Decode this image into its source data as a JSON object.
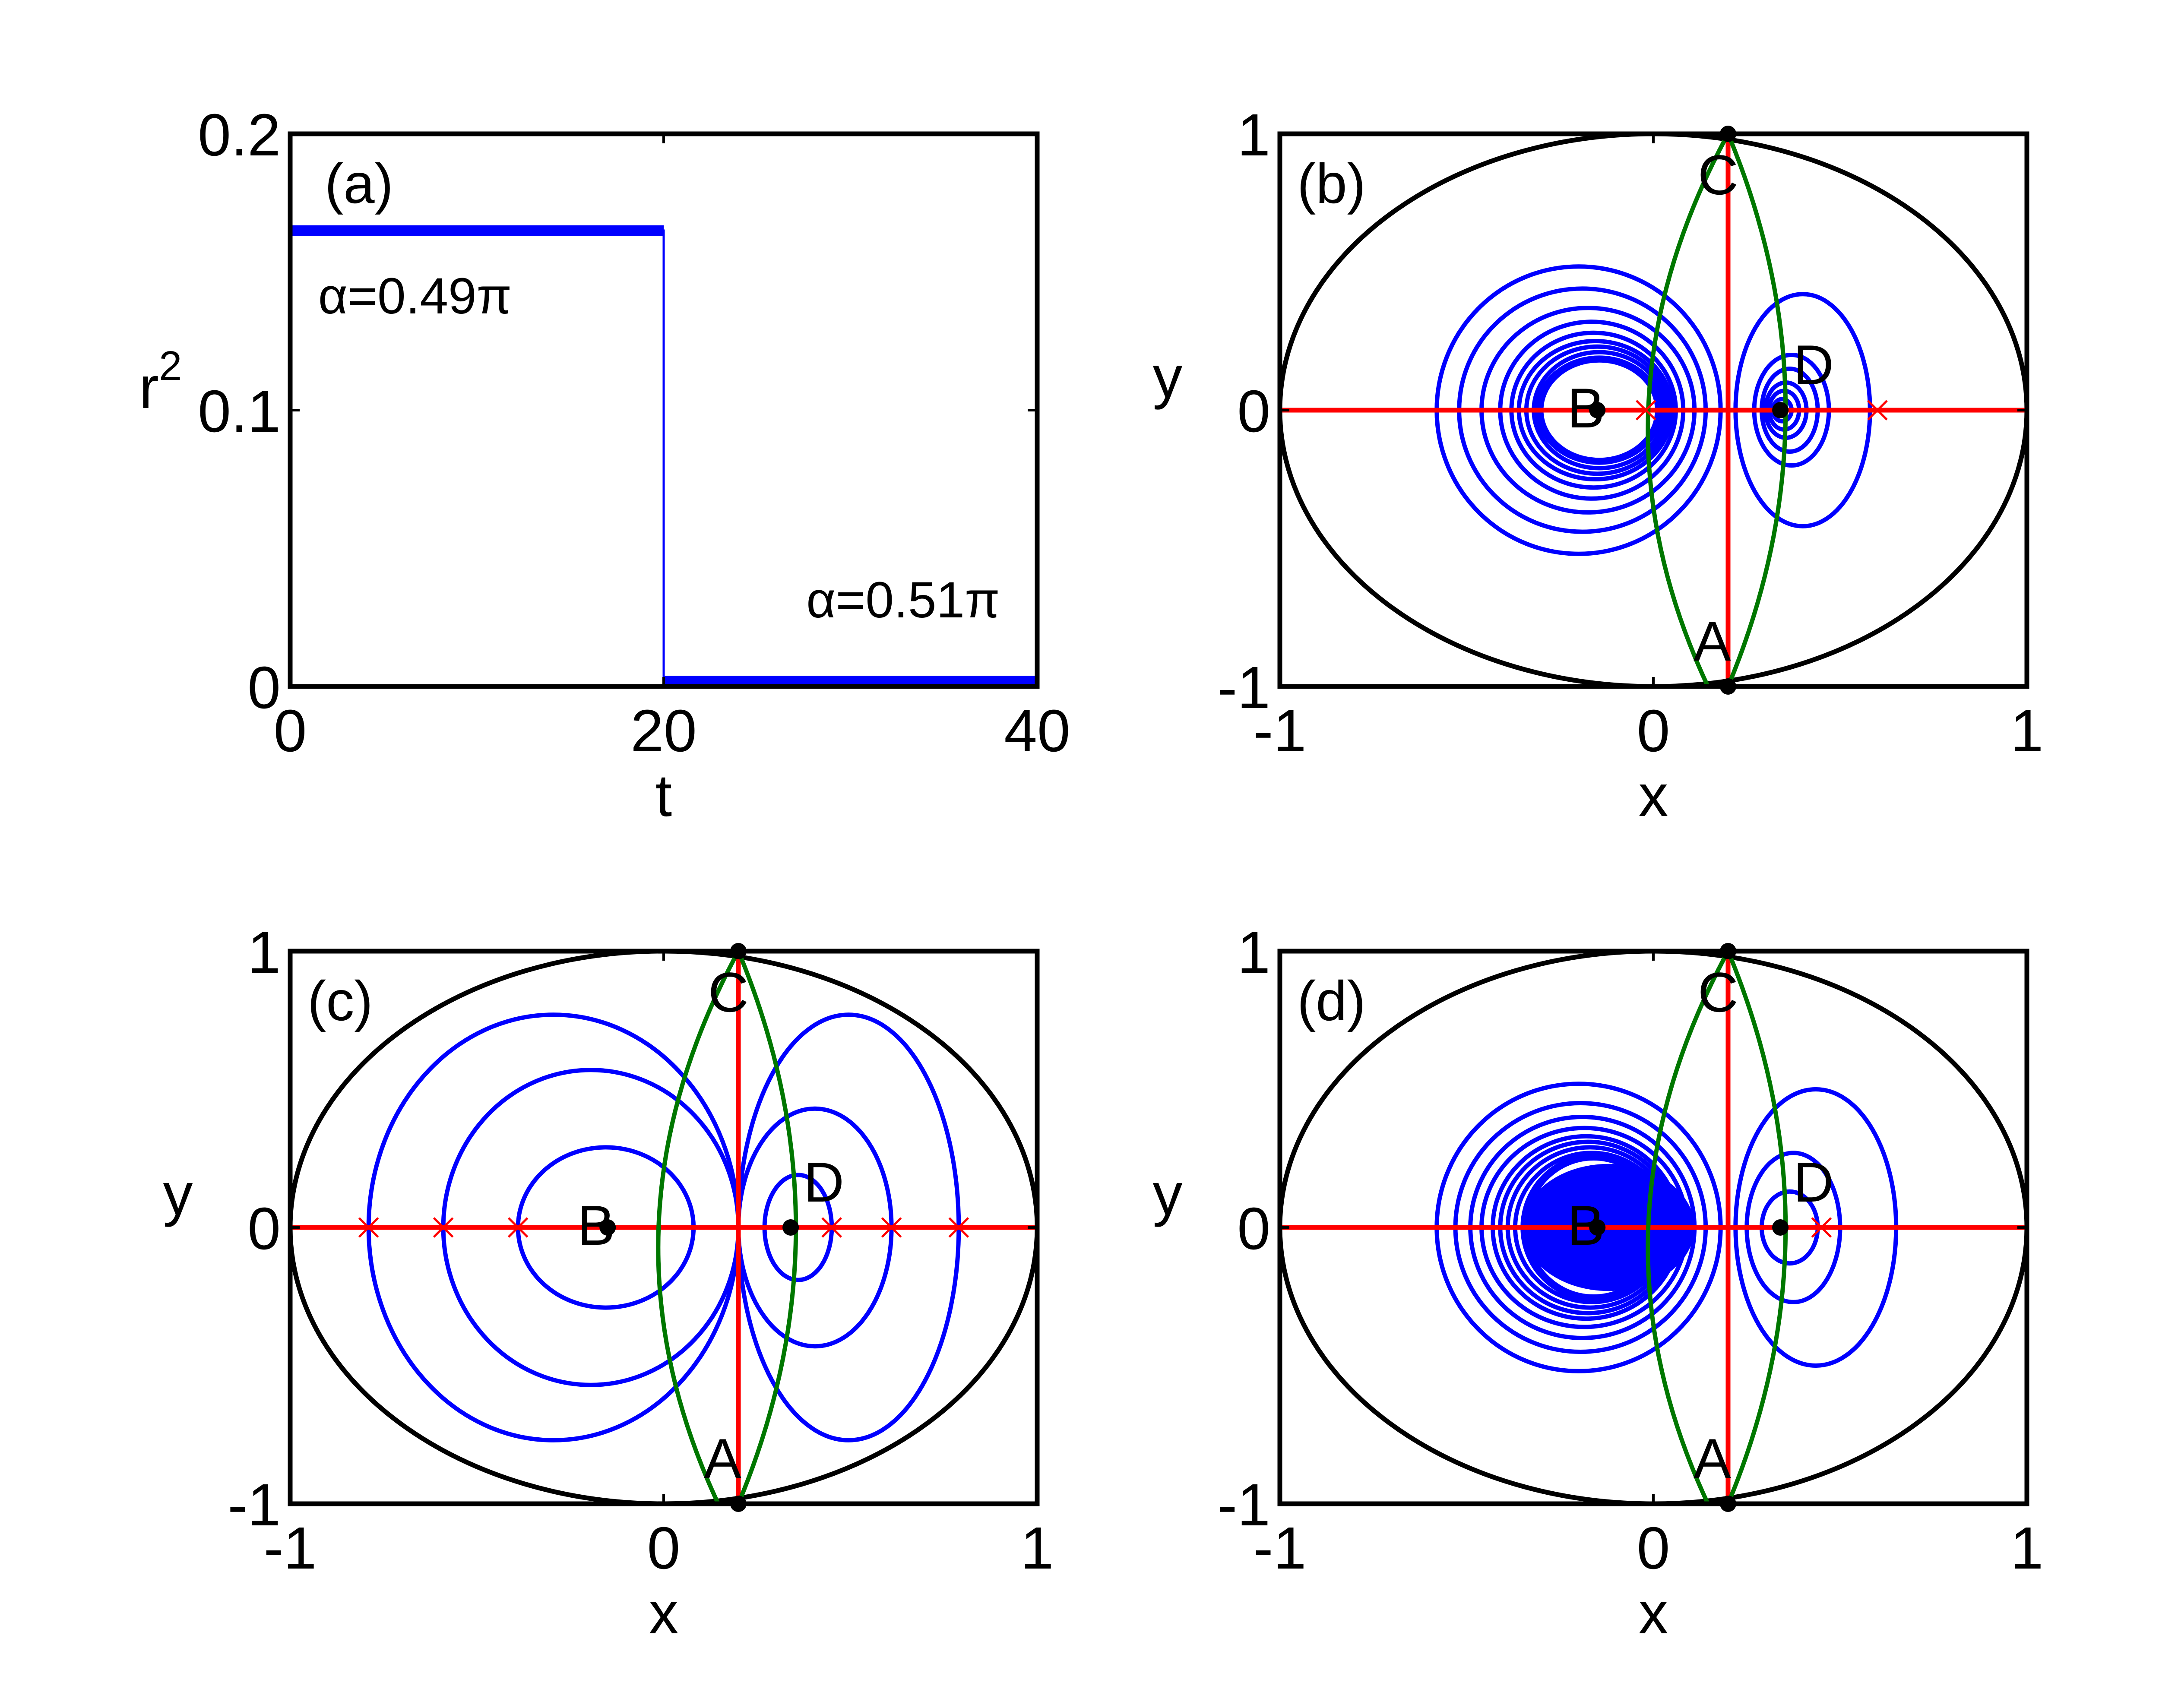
{
  "colors": {
    "frame": "#000000",
    "contour": "#0000ff",
    "red": "#ff0000",
    "green": "#007700",
    "marker": "#000000"
  },
  "chart_data": [
    {
      "panel": "a",
      "type": "line",
      "panel_label": "(a)",
      "xlabel": "t",
      "ylabel_base": "r",
      "ylabel_exp": "2",
      "xlim": [
        0,
        40
      ],
      "ylim": [
        0,
        0.2
      ],
      "xticks": [
        0,
        20,
        40
      ],
      "xtick_labels": [
        "0",
        "20",
        "40"
      ],
      "yticks": [
        0,
        0.1,
        0.2
      ],
      "ytick_labels": [
        "0",
        "0.1",
        "0.2"
      ],
      "series": [
        {
          "x": [
            0,
            20,
            20,
            40
          ],
          "y": [
            0.165,
            0.165,
            0.002,
            0.002
          ]
        }
      ],
      "annotations": [
        {
          "text": "α=0.49π",
          "x": 1.5,
          "y": 0.135
        },
        {
          "text": "α=0.51π",
          "x": 38,
          "y": 0.025
        }
      ]
    },
    {
      "panel": "b",
      "type": "contour",
      "panel_label": "(b)",
      "xlabel": "x",
      "ylabel": "y",
      "xlim": [
        -1,
        1
      ],
      "ylim": [
        -1,
        1
      ],
      "xticks": [
        -1,
        0,
        1
      ],
      "xtick_labels": [
        "-1",
        "0",
        "1"
      ],
      "yticks": [
        -1,
        0,
        1
      ],
      "ytick_labels": [
        "-1",
        "0",
        "1"
      ],
      "points": [
        {
          "label": "A",
          "x": 0.2,
          "y": -1
        },
        {
          "label": "B",
          "x": -0.15,
          "y": 0
        },
        {
          "label": "C",
          "x": 0.2,
          "y": 1
        },
        {
          "label": "D",
          "x": 0.34,
          "y": 0
        }
      ],
      "left_loops": [
        {
          "x0": -0.58,
          "x1": 0.18,
          "h": 0.52
        },
        {
          "x0": -0.52,
          "x1": 0.14,
          "h": 0.44
        },
        {
          "x0": -0.46,
          "x1": 0.11,
          "h": 0.37
        },
        {
          "x0": -0.41,
          "x1": 0.08,
          "h": 0.32
        },
        {
          "x0": -0.38,
          "x1": 0.06,
          "h": 0.28
        },
        {
          "x0": -0.36,
          "x1": 0.05,
          "h": 0.25
        },
        {
          "x0": -0.34,
          "x1": 0.04,
          "h": 0.23
        },
        {
          "x0": -0.32,
          "x1": 0.03,
          "h": 0.21
        },
        {
          "x0": -0.31,
          "x1": 0.02,
          "h": 0.19
        },
        {
          "x0": -0.3,
          "x1": 0.01,
          "h": 0.18
        }
      ],
      "right_loops": [
        {
          "x0": 0.22,
          "x1": 0.58,
          "h": 0.42
        },
        {
          "x0": 0.27,
          "x1": 0.47,
          "h": 0.2
        },
        {
          "x0": 0.29,
          "x1": 0.44,
          "h": 0.15
        },
        {
          "x0": 0.3,
          "x1": 0.41,
          "h": 0.1
        },
        {
          "x0": 0.31,
          "x1": 0.39,
          "h": 0.07
        },
        {
          "x0": 0.32,
          "x1": 0.37,
          "h": 0.04
        }
      ],
      "crosses": [
        -0.02,
        0.6
      ]
    },
    {
      "panel": "c",
      "type": "contour",
      "panel_label": "(c)",
      "xlabel": "x",
      "ylabel": "y",
      "xlim": [
        -1,
        1
      ],
      "ylim": [
        -1,
        1
      ],
      "xticks": [
        -1,
        0,
        1
      ],
      "xtick_labels": [
        "-1",
        "0",
        "1"
      ],
      "yticks": [
        -1,
        0,
        1
      ],
      "ytick_labels": [
        "-1",
        "0",
        "1"
      ],
      "points": [
        {
          "label": "A",
          "x": 0.2,
          "y": -1
        },
        {
          "label": "B",
          "x": -0.15,
          "y": 0
        },
        {
          "label": "C",
          "x": 0.2,
          "y": 1
        },
        {
          "label": "D",
          "x": 0.34,
          "y": 0
        }
      ],
      "left_loops": [
        {
          "x0": -0.79,
          "x1": 0.2,
          "h": 0.77
        },
        {
          "x0": -0.59,
          "x1": 0.2,
          "h": 0.57
        },
        {
          "x0": -0.39,
          "x1": 0.08,
          "h": 0.29
        }
      ],
      "right_loops": [
        {
          "x0": 0.2,
          "x1": 0.79,
          "h": 0.77
        },
        {
          "x0": 0.2,
          "x1": 0.61,
          "h": 0.43
        },
        {
          "x0": 0.27,
          "x1": 0.45,
          "h": 0.19
        }
      ],
      "crosses": [
        -0.79,
        -0.59,
        -0.39,
        0.45,
        0.61,
        0.79
      ]
    },
    {
      "panel": "d",
      "type": "contour",
      "panel_label": "(d)",
      "xlabel": "x",
      "ylabel": "y",
      "xlim": [
        -1,
        1
      ],
      "ylim": [
        -1,
        1
      ],
      "xticks": [
        -1,
        0,
        1
      ],
      "xtick_labels": [
        "-1",
        "0",
        "1"
      ],
      "yticks": [
        -1,
        0,
        1
      ],
      "ytick_labels": [
        "-1",
        "0",
        "1"
      ],
      "points": [
        {
          "label": "A",
          "x": 0.2,
          "y": -1
        },
        {
          "label": "B",
          "x": -0.15,
          "y": 0
        },
        {
          "label": "C",
          "x": 0.2,
          "y": 1
        },
        {
          "label": "D",
          "x": 0.34,
          "y": 0
        }
      ],
      "left_loops": [
        {
          "x0": -0.58,
          "x1": 0.18,
          "h": 0.52
        },
        {
          "x0": -0.53,
          "x1": 0.14,
          "h": 0.45
        },
        {
          "x0": -0.49,
          "x1": 0.11,
          "h": 0.4
        },
        {
          "x0": -0.46,
          "x1": 0.09,
          "h": 0.36
        },
        {
          "x0": -0.43,
          "x1": 0.07,
          "h": 0.33
        },
        {
          "x0": -0.41,
          "x1": 0.06,
          "h": 0.31
        },
        {
          "x0": -0.39,
          "x1": 0.05,
          "h": 0.29
        },
        {
          "x0": -0.37,
          "x1": 0.04,
          "h": 0.27
        },
        {
          "x0": -0.35,
          "x1": 0.03,
          "h": 0.26
        },
        {
          "x0": -0.34,
          "x1": 0.02,
          "h": 0.25
        }
      ],
      "right_loops": [
        {
          "x0": 0.22,
          "x1": 0.65,
          "h": 0.5
        },
        {
          "x0": 0.25,
          "x1": 0.5,
          "h": 0.27
        },
        {
          "x0": 0.29,
          "x1": 0.44,
          "h": 0.13
        }
      ],
      "crosses": [
        0.45
      ],
      "filled_core": {
        "cx": -0.12,
        "rx": 0.23,
        "ry": 0.23
      }
    }
  ]
}
